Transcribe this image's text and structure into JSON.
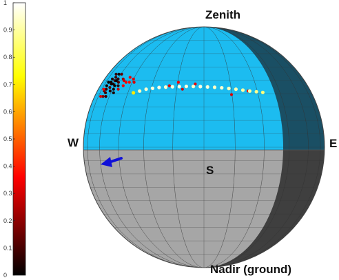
{
  "chart_data": {
    "type": "scatter",
    "title": "",
    "colorbar": {
      "min": 0,
      "max": 1,
      "ticks": [
        "0",
        "0.1",
        "0.2",
        "0.3",
        "0.4",
        "0.5",
        "0.6",
        "0.7",
        "0.8",
        "0.9",
        "1"
      ],
      "colormap": "hot",
      "placement": "left"
    },
    "labels": {
      "zenith": "Zenith",
      "nadir": "Nadir (ground)",
      "west": "W",
      "east": "E",
      "south": "S"
    },
    "sphere": {
      "sky_color": "#1cbcf0",
      "sky_shadow_color": "#1a4f64",
      "ground_color": "#a6a6a6",
      "ground_shadow_color": "#3f3f3f",
      "grid": true,
      "grid_color": "#333333"
    },
    "series": [
      {
        "values_key": "cluster_west",
        "points": [
          {
            "az": -72,
            "el": 37,
            "v": 0.05
          },
          {
            "az": -70,
            "el": 35,
            "v": 0.02
          },
          {
            "az": -68,
            "el": 38,
            "v": 0.08
          },
          {
            "az": -66,
            "el": 36,
            "v": 0.1
          },
          {
            "az": -74,
            "el": 33,
            "v": 0.03
          },
          {
            "az": -71,
            "el": 31,
            "v": 0.06
          },
          {
            "az": -67,
            "el": 32,
            "v": 0.12
          },
          {
            "az": -65,
            "el": 34,
            "v": 0.04
          },
          {
            "az": -63,
            "el": 37,
            "v": 0.07
          },
          {
            "az": -62,
            "el": 33,
            "v": 0.02
          },
          {
            "az": -69,
            "el": 29,
            "v": 0.09
          },
          {
            "az": -64,
            "el": 30,
            "v": 0.05
          },
          {
            "az": -73,
            "el": 30,
            "v": 0.15
          },
          {
            "az": -75,
            "el": 35,
            "v": 0.01
          },
          {
            "az": -60,
            "el": 35,
            "v": 0.11
          },
          {
            "az": -61,
            "el": 31,
            "v": 0.03
          },
          {
            "az": -66,
            "el": 27,
            "v": 0.08
          },
          {
            "az": -70,
            "el": 27,
            "v": 0.18
          },
          {
            "az": -58,
            "el": 33,
            "v": 0.06
          },
          {
            "az": -59,
            "el": 29,
            "v": 0.04
          },
          {
            "az": -67,
            "el": 40,
            "v": 0.02
          },
          {
            "az": -63,
            "el": 40,
            "v": 0.14
          },
          {
            "az": -72,
            "el": 40,
            "v": 0.07
          },
          {
            "az": -57,
            "el": 37,
            "v": 0.22
          },
          {
            "az": -64,
            "el": 36,
            "v": 0.01
          },
          {
            "az": -68,
            "el": 34,
            "v": 0.03
          }
        ]
      },
      {
        "values_key": "cluster_red",
        "points": [
          {
            "az": -55,
            "el": 36,
            "v": 0.3
          },
          {
            "az": -53,
            "el": 33,
            "v": 0.35
          },
          {
            "az": -51,
            "el": 38,
            "v": 0.33
          },
          {
            "az": -49,
            "el": 35,
            "v": 0.38
          },
          {
            "az": -56,
            "el": 31,
            "v": 0.28
          },
          {
            "az": -47,
            "el": 37,
            "v": 0.32
          },
          {
            "az": -52,
            "el": 35,
            "v": 0.36
          },
          {
            "az": -45,
            "el": 35,
            "v": 0.3
          },
          {
            "az": -74,
            "el": 27,
            "v": 0.3
          },
          {
            "az": -76,
            "el": 31,
            "v": 0.34
          },
          {
            "az": -20,
            "el": 33,
            "v": 0.32
          },
          {
            "az": -15,
            "el": 35,
            "v": 0.35
          },
          {
            "az": -12,
            "el": 31,
            "v": 0.3
          },
          {
            "az": -5,
            "el": 34,
            "v": 0.33
          },
          {
            "az": 15,
            "el": 28,
            "v": 0.31
          },
          {
            "az": 25,
            "el": 30,
            "v": 0.35
          }
        ]
      },
      {
        "values_key": "track_yellow",
        "points": [
          {
            "az": -38,
            "el": 30,
            "v": 0.93
          },
          {
            "az": -34,
            "el": 31,
            "v": 0.95
          },
          {
            "az": -30,
            "el": 31.5,
            "v": 0.96
          },
          {
            "az": -26,
            "el": 32,
            "v": 0.97
          },
          {
            "az": -22,
            "el": 32.2,
            "v": 0.95
          },
          {
            "az": -18,
            "el": 32.4,
            "v": 0.96
          },
          {
            "az": -14,
            "el": 32.5,
            "v": 0.97
          },
          {
            "az": -10,
            "el": 32.6,
            "v": 0.96
          },
          {
            "az": -6,
            "el": 32.6,
            "v": 0.95
          },
          {
            "az": -2,
            "el": 32.5,
            "v": 0.97
          },
          {
            "az": 2,
            "el": 32.3,
            "v": 0.96
          },
          {
            "az": 6,
            "el": 32.1,
            "v": 0.94
          },
          {
            "az": 10,
            "el": 31.8,
            "v": 0.95
          },
          {
            "az": 14,
            "el": 31.4,
            "v": 0.93
          },
          {
            "az": 18,
            "el": 31,
            "v": 0.92
          },
          {
            "az": 22,
            "el": 30.5,
            "v": 0.9
          },
          {
            "az": 26,
            "el": 30,
            "v": 0.9
          },
          {
            "az": 30,
            "el": 29.6,
            "v": 0.88
          },
          {
            "az": 34,
            "el": 29.2,
            "v": 0.86
          },
          {
            "az": -42,
            "el": 29,
            "v": 0.7
          }
        ]
      }
    ]
  }
}
